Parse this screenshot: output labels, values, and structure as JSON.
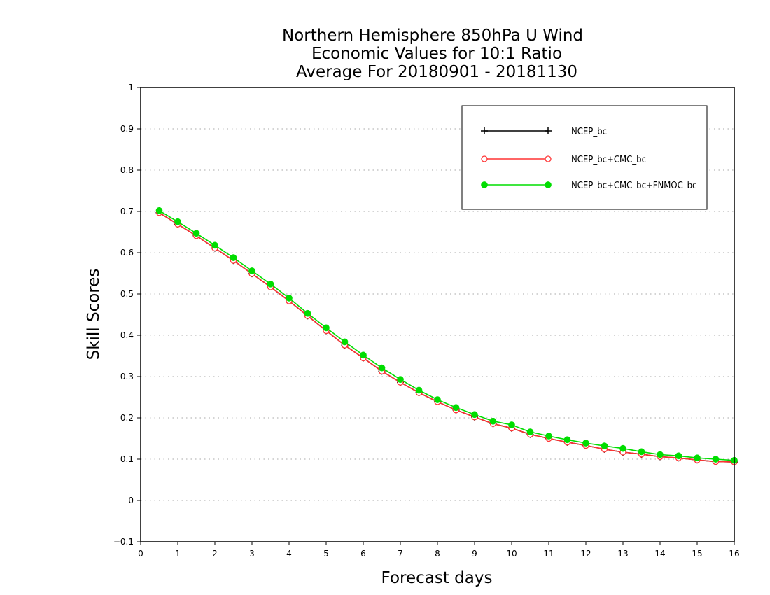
{
  "chart_data": {
    "type": "line",
    "title": [
      "Northern Hemisphere 850hPa U Wind",
      "Economic Values for 10:1 Ratio",
      "Average For 20180901 - 20181130"
    ],
    "xlabel": "Forecast days",
    "ylabel": "Skill Scores",
    "xlim": [
      0,
      16
    ],
    "ylim": [
      -0.1,
      1
    ],
    "xticks": [
      0,
      1,
      2,
      3,
      4,
      5,
      6,
      7,
      8,
      9,
      10,
      11,
      12,
      13,
      14,
      15,
      16
    ],
    "yticks": [
      -0.1,
      0,
      0.1,
      0.2,
      0.3,
      0.4,
      0.5,
      0.6,
      0.7,
      0.8,
      0.9,
      1
    ],
    "grid": "horizontal dotted",
    "legend_position": "top-right",
    "x": [
      0.5,
      1,
      1.5,
      2,
      2.5,
      3,
      3.5,
      4,
      4.5,
      5,
      5.5,
      6,
      6.5,
      7,
      7.5,
      8,
      8.5,
      9,
      9.5,
      10,
      10.5,
      11,
      11.5,
      12,
      12.5,
      13,
      13.5,
      14,
      14.5,
      15,
      15.5,
      16
    ],
    "series": [
      {
        "name": "NCEP_bc",
        "color": "#000000",
        "marker": "plus",
        "values": [
          0.697,
          0.669,
          0.641,
          0.611,
          0.581,
          0.549,
          0.517,
          0.483,
          0.447,
          0.411,
          0.376,
          0.345,
          0.313,
          0.286,
          0.261,
          0.239,
          0.219,
          0.202,
          0.186,
          0.175,
          0.16,
          0.15,
          0.141,
          0.133,
          0.124,
          0.117,
          0.112,
          0.106,
          0.103,
          0.098,
          0.094,
          0.093
        ]
      },
      {
        "name": "NCEP_bc+CMC_bc",
        "color": "#ff3333",
        "marker": "open-circle",
        "values": [
          0.697,
          0.669,
          0.641,
          0.611,
          0.581,
          0.549,
          0.517,
          0.483,
          0.447,
          0.411,
          0.376,
          0.345,
          0.313,
          0.286,
          0.261,
          0.239,
          0.219,
          0.202,
          0.186,
          0.175,
          0.16,
          0.15,
          0.141,
          0.133,
          0.124,
          0.117,
          0.112,
          0.106,
          0.103,
          0.098,
          0.094,
          0.093
        ]
      },
      {
        "name": "NCEP_bc+CMC_bc+FNMOC_bc",
        "color": "#00dd00",
        "marker": "filled-circle",
        "values": [
          0.702,
          0.675,
          0.647,
          0.618,
          0.588,
          0.556,
          0.524,
          0.49,
          0.453,
          0.418,
          0.384,
          0.352,
          0.321,
          0.293,
          0.267,
          0.244,
          0.225,
          0.208,
          0.192,
          0.183,
          0.166,
          0.156,
          0.147,
          0.139,
          0.132,
          0.126,
          0.118,
          0.111,
          0.108,
          0.103,
          0.1,
          0.097
        ]
      }
    ]
  }
}
